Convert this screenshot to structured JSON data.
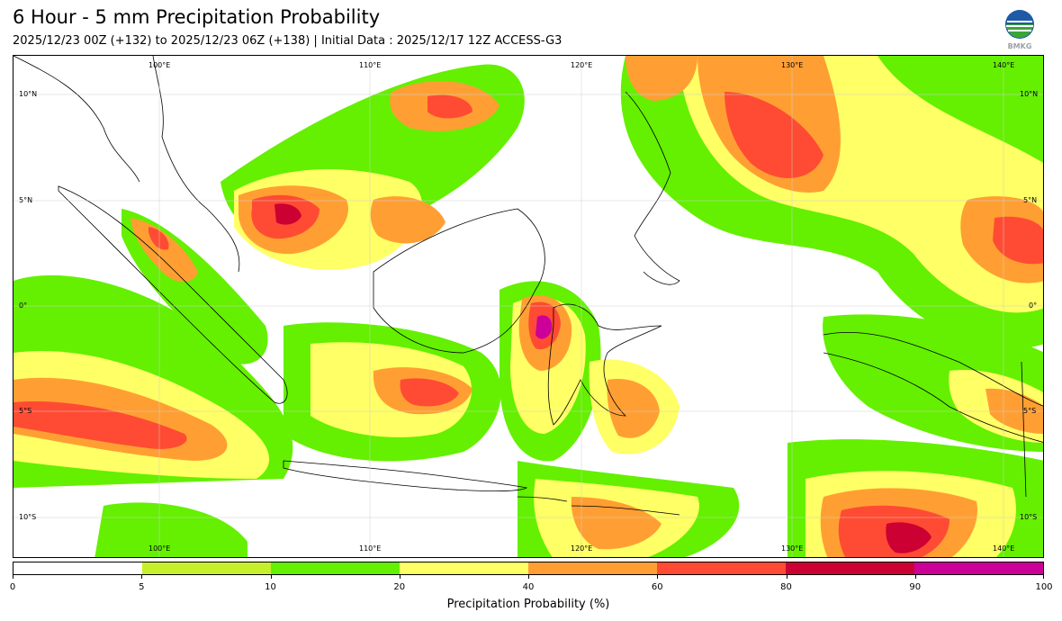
{
  "header": {
    "title": "6 Hour - 5 mm Precipitation Probability",
    "subtitle": "2025/12/23 00Z (+132) to 2025/12/23 06Z (+138) | Initial Data : 2025/12/17 12Z ACCESS-G3"
  },
  "logo": {
    "text": "BMKG",
    "colors": {
      "blue": "#1f5aa6",
      "green": "#3aa53a"
    }
  },
  "map": {
    "lon_labels": [
      "100°E",
      "110°E",
      "120°E",
      "130°E",
      "140°E"
    ],
    "lat_labels": [
      "10°N",
      "5°N",
      "0°",
      "5°S",
      "10°S"
    ]
  },
  "colorbar": {
    "label": "Precipitation Probability (%)",
    "ticks": [
      "0",
      "5",
      "10",
      "20",
      "40",
      "60",
      "80",
      "90",
      "100"
    ],
    "colors": [
      "#ffffff",
      "#c6f02b",
      "#64f000",
      "#ffff66",
      "#ff9f33",
      "#ff4b33",
      "#cc0033",
      "#cc0099"
    ]
  }
}
